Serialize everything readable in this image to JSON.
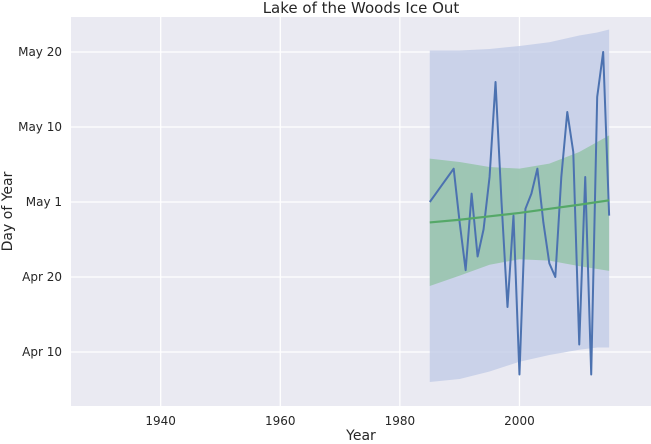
{
  "chart_data": {
    "type": "line",
    "title": "Lake of the Woods Ice Out",
    "xlabel": "Year",
    "ylabel": "Day of Year",
    "xlim": [
      1925,
      2022
    ],
    "ylim": [
      104.5,
      125
    ],
    "x_ticks": [
      1940,
      1960,
      1980,
      2000
    ],
    "y_ticks": [
      {
        "value": 100,
        "label": "Apr 10"
      },
      {
        "value": 110,
        "label": "Apr 20"
      },
      {
        "value": 121,
        "label": "May 1"
      },
      {
        "value": 130,
        "label": "May 10"
      },
      {
        "value": 140,
        "label": "May 20"
      }
    ],
    "grid": true,
    "background_color": "#eaeaf2",
    "colors": {
      "observed": "#4c72b0",
      "trend": "#55a868",
      "wide_band": "#bfc9e6",
      "narrow_band": "#8fc2a2"
    },
    "series": [
      {
        "role": "observed",
        "x": [
          1985,
          1986,
          1987,
          1988,
          1989,
          1990,
          1991,
          1992,
          1993,
          1994,
          1995,
          1996,
          1997,
          1998,
          1999,
          2000,
          2001,
          2002,
          2003,
          2004,
          2005,
          2006,
          2007,
          2008,
          2009,
          2010,
          2011,
          2012,
          2013,
          2014,
          2015
        ],
        "y": [
          121,
          122,
          123,
          124,
          125,
          118,
          111,
          122,
          113,
          117,
          124,
          136,
          121,
          106,
          119,
          97,
          120,
          122,
          125,
          118,
          112,
          110,
          124,
          132,
          127,
          101,
          124,
          97,
          134,
          140,
          119
        ]
      },
      {
        "role": "trend",
        "x": [
          1985,
          1990,
          1995,
          2000,
          2005,
          2010,
          2015
        ],
        "y": [
          118,
          118.4,
          118.9,
          119.4,
          120,
          120.6,
          121.2
        ]
      }
    ],
    "bands": [
      {
        "role": "wide_band",
        "x": [
          1985,
          1990,
          1995,
          2000,
          2005,
          2010,
          2013,
          2015
        ],
        "lower": [
          96,
          96.4,
          97.4,
          98.7,
          99.6,
          100.3,
          100.6,
          100.6
        ],
        "upper": [
          140.2,
          140.2,
          140.4,
          140.8,
          141.3,
          142.2,
          142.6,
          143
        ]
      },
      {
        "role": "narrow_band",
        "x": [
          1985,
          1990,
          1995,
          2000,
          2005,
          2010,
          2015
        ],
        "lower": [
          108.8,
          110.2,
          111.8,
          112.6,
          112.4,
          111.6,
          110.9
        ],
        "upper": [
          126.2,
          125.8,
          125.2,
          125,
          125.6,
          127,
          129
        ]
      }
    ]
  }
}
